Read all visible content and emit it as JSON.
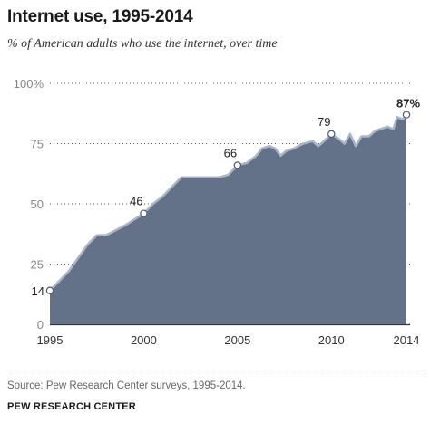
{
  "chart_data": {
    "type": "area",
    "title": "Internet use, 1995-2014",
    "subtitle": "% of American adults who use the internet, over time",
    "xlabel": "",
    "ylabel": "",
    "xlim": [
      1995,
      2014.3
    ],
    "ylim": [
      0,
      100
    ],
    "x_ticks": [
      "1995",
      "2000",
      "2005",
      "2010",
      "2014"
    ],
    "x_tick_values": [
      1995,
      2000,
      2005,
      2010,
      2014
    ],
    "y_ticks": [
      "0",
      "25",
      "50",
      "75",
      "100%"
    ],
    "y_tick_values": [
      0,
      25,
      50,
      75,
      100
    ],
    "grid": "dotted horizontal",
    "fill_color": "#637289",
    "line_color": "#a9b6c9",
    "series": [
      {
        "x": [
          1995,
          1996,
          1997,
          1997.5,
          1998,
          1999,
          2000,
          2000.5,
          2001,
          2001.5,
          2002,
          2003,
          2004,
          2004.5,
          2005,
          2005.5,
          2006,
          2006.3,
          2006.7,
          2007,
          2007.3,
          2007.6,
          2008,
          2008.5,
          2009,
          2009.3,
          2009.6,
          2010,
          2010.4,
          2010.7,
          2011,
          2011.3,
          2011.6,
          2012,
          2012.3,
          2012.6,
          2013,
          2013.3,
          2013.5,
          2013.8,
          2014
        ],
        "values": [
          14,
          22,
          33,
          37,
          37,
          41,
          46,
          50,
          53,
          57,
          61,
          61,
          61,
          62,
          66,
          67,
          70,
          73,
          74,
          73,
          70,
          72,
          73,
          75,
          76,
          74,
          76,
          79,
          77,
          75,
          79,
          74,
          78,
          78,
          80,
          81,
          82,
          81,
          86,
          85,
          87
        ]
      }
    ],
    "annotations": [
      {
        "x": 1995,
        "value": 14,
        "label": "14"
      },
      {
        "x": 2000,
        "value": 46,
        "label": "46"
      },
      {
        "x": 2005,
        "value": 66,
        "label": "66"
      },
      {
        "x": 2010,
        "value": 79,
        "label": "79"
      },
      {
        "x": 2014,
        "value": 87,
        "label": "87%"
      }
    ]
  },
  "source": "Source: Pew Research Center surveys, 1995-2014.",
  "credit": "PEW RESEARCH CENTER"
}
